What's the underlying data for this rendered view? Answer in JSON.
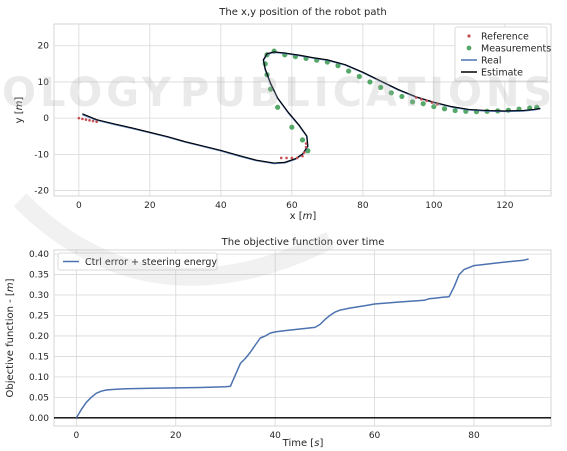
{
  "colors": {
    "reference": "#c44e52",
    "measurements": "#55a868",
    "real": "#4c72b0",
    "estimate": "#000000",
    "objective": "#4c72b0",
    "grid": "#d8d8d8",
    "frame": "#cccccc",
    "watermark": "#b4b4b4"
  },
  "chart_data": [
    {
      "type": "scatter",
      "title": "The x,y position of the robot path",
      "xlabel": "x [m]",
      "ylabel": "y [m]",
      "xlim": [
        -7,
        133
      ],
      "ylim": [
        -21.5,
        26
      ],
      "xticks": [
        0,
        20,
        40,
        60,
        80,
        100,
        120
      ],
      "yticks": [
        -20,
        -10,
        0,
        10,
        20
      ],
      "grid": true,
      "legend_position": "top-right",
      "series": [
        {
          "name": "Reference",
          "style": "markers",
          "x": [
            0,
            1,
            2,
            3,
            4,
            5,
            57,
            58.5,
            60,
            61.5,
            63,
            63.5,
            64,
            64,
            95,
            96.5,
            98,
            99.5,
            101
          ],
          "y": [
            0,
            -0.2,
            -0.4,
            -0.6,
            -0.8,
            -1,
            -11,
            -11,
            -11,
            -11,
            -10.5,
            -9.5,
            -8,
            -7,
            5.7,
            5.2,
            4.8,
            4.3,
            3.8
          ]
        },
        {
          "name": "Measurements",
          "style": "markers",
          "x": [
            55,
            58,
            61,
            64,
            67,
            70,
            73,
            76,
            79,
            82,
            85,
            88,
            91,
            94,
            97,
            100,
            103,
            106,
            109,
            112,
            115,
            118,
            121,
            124,
            127,
            129,
            53,
            52.5,
            53,
            54,
            56,
            60,
            63,
            64.5
          ],
          "y": [
            18.5,
            17.5,
            17,
            16.5,
            16,
            15.5,
            14.5,
            13,
            11.5,
            10,
            8.5,
            7,
            6,
            4.5,
            4,
            3.2,
            2.6,
            2.1,
            1.9,
            1.8,
            1.9,
            2,
            2.2,
            2.5,
            2.8,
            3,
            17.5,
            15,
            12,
            8,
            3,
            -2.5,
            -6,
            -9
          ]
        },
        {
          "name": "Real",
          "style": "line",
          "x": [
            1,
            5,
            10,
            15,
            20,
            25,
            30,
            35,
            40,
            45,
            50,
            55,
            58,
            61,
            63,
            64.5,
            64.2,
            62,
            59,
            56,
            54,
            52.5,
            52,
            53,
            55,
            58,
            62,
            66,
            70,
            75,
            80,
            85,
            90,
            95,
            100,
            105,
            110,
            115,
            120,
            125,
            128,
            130
          ],
          "y": [
            1,
            -0.5,
            -1.7,
            -2.8,
            -4,
            -5.2,
            -6.6,
            -7.8,
            -9,
            -10.4,
            -11.7,
            -12.5,
            -12.3,
            -11.3,
            -10,
            -7.8,
            -5,
            -2,
            1.5,
            5.5,
            9.5,
            13.5,
            16,
            17.7,
            18.2,
            17.9,
            17.3,
            16.6,
            16,
            14.7,
            12.6,
            10.2,
            7.8,
            5.8,
            4.3,
            3.1,
            2.3,
            2,
            1.9,
            2,
            2.3,
            2.6
          ]
        },
        {
          "name": "Estimate",
          "style": "line",
          "x": [
            1,
            5,
            10,
            15,
            20,
            25,
            30,
            35,
            40,
            45,
            50,
            55,
            58,
            61,
            63,
            64.5,
            64.2,
            62,
            59,
            56,
            54,
            52.5,
            52,
            53,
            55,
            58,
            62,
            66,
            70,
            75,
            80,
            85,
            90,
            95,
            100,
            105,
            110,
            115,
            120,
            125,
            128,
            130
          ],
          "y": [
            1.2,
            -0.4,
            -1.6,
            -2.7,
            -3.9,
            -5.1,
            -6.5,
            -7.7,
            -8.9,
            -10.3,
            -11.6,
            -12.4,
            -12.2,
            -11.2,
            -9.9,
            -7.7,
            -4.9,
            -1.9,
            1.6,
            5.6,
            9.6,
            13.6,
            16.1,
            17.8,
            18.3,
            18,
            17.4,
            16.7,
            16.1,
            14.8,
            12.7,
            10.3,
            7.9,
            5.9,
            4.4,
            3.2,
            2.4,
            2.1,
            2,
            2.1,
            2.4,
            2.7
          ]
        }
      ]
    },
    {
      "type": "line",
      "title": "The objective function over time",
      "xlabel": "Time [s]",
      "ylabel": "Objective function - [m]",
      "xlim": [
        -4.5,
        95.5
      ],
      "ylim": [
        -0.02,
        0.41
      ],
      "xticks": [
        0,
        20,
        40,
        60,
        80
      ],
      "yticks": [
        0.0,
        0.05,
        0.1,
        0.15,
        0.2,
        0.25,
        0.3,
        0.35,
        0.4
      ],
      "ytick_labels": [
        "0.00",
        "0.05",
        "0.10",
        "0.15",
        "0.20",
        "0.25",
        "0.30",
        "0.35",
        "0.40"
      ],
      "grid": true,
      "legend_position": "top-left",
      "hline": 0,
      "series": [
        {
          "name": "Ctrl error + steering energy",
          "x": [
            0,
            1,
            2,
            3,
            4,
            5,
            6,
            8,
            10,
            15,
            20,
            25,
            30,
            31,
            32,
            33,
            34,
            35,
            36,
            37,
            38,
            39,
            40,
            42,
            45,
            48,
            49,
            50,
            51,
            52,
            53,
            55,
            58,
            60,
            65,
            70,
            71,
            72,
            74,
            75,
            76,
            77,
            78,
            80,
            85,
            90,
            91
          ],
          "y": [
            0.0,
            0.02,
            0.038,
            0.05,
            0.06,
            0.065,
            0.068,
            0.07,
            0.071,
            0.072,
            0.073,
            0.074,
            0.076,
            0.077,
            0.105,
            0.133,
            0.145,
            0.16,
            0.178,
            0.195,
            0.2,
            0.207,
            0.21,
            0.213,
            0.217,
            0.221,
            0.228,
            0.24,
            0.25,
            0.258,
            0.263,
            0.268,
            0.274,
            0.278,
            0.283,
            0.287,
            0.291,
            0.292,
            0.295,
            0.296,
            0.32,
            0.35,
            0.362,
            0.372,
            0.379,
            0.385,
            0.388
          ]
        }
      ]
    }
  ],
  "watermark": {
    "text_left": "OLOGY",
    "text_right": "PUBLICATIONS"
  }
}
